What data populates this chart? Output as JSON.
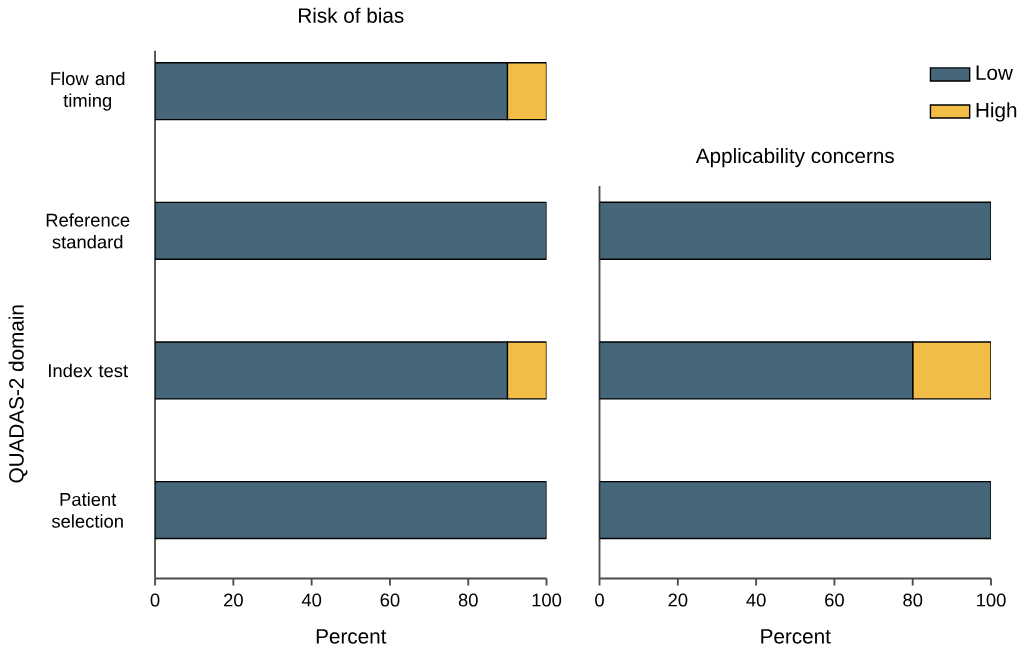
{
  "chart_data": [
    {
      "type": "bar",
      "orientation": "horizontal",
      "stacked": true,
      "title": "Risk of bias",
      "xlabel": "Percent",
      "ylabel": "QUADAS-2 domain",
      "categories": [
        "Flow and timing",
        "Reference standard",
        "Index test",
        "Patient selection"
      ],
      "series": [
        {
          "name": "Low",
          "color": "#46677a",
          "values": [
            90,
            100,
            90,
            100
          ]
        },
        {
          "name": "High",
          "color": "#f2bd47",
          "values": [
            10,
            0,
            10,
            0
          ]
        }
      ],
      "xlim": [
        0,
        100
      ],
      "xticks": [
        0,
        20,
        40,
        60,
        80,
        100
      ],
      "legend": "right"
    },
    {
      "type": "bar",
      "orientation": "horizontal",
      "stacked": true,
      "title": "Applicability concerns",
      "xlabel": "Percent",
      "categories": [
        null,
        null,
        null
      ],
      "series": [
        {
          "color": "#46677a",
          "values": [
            100,
            80,
            100
          ]
        },
        {
          "color": "#f2bd47",
          "values": [
            0,
            20,
            0
          ]
        }
      ],
      "xlim": [
        0,
        100
      ],
      "xticks": [
        0,
        20,
        40,
        60,
        80,
        100
      ],
      "tick_labels": "x"
    }
  ]
}
